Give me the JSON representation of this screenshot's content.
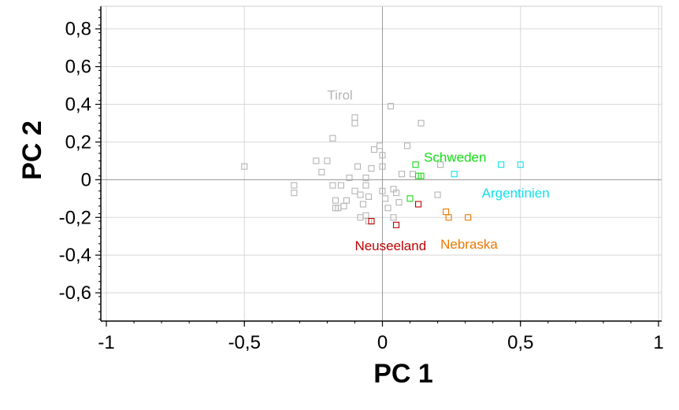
{
  "chart_data": {
    "type": "scatter",
    "title": "",
    "xlabel": "PC 1",
    "ylabel": "PC 2",
    "xlim": [
      -1,
      1
    ],
    "ylim": [
      -0.75,
      0.92
    ],
    "x_ticks": [
      -1,
      -0.5,
      0,
      0.5,
      1
    ],
    "x_tick_labels": [
      "-1",
      "-0,5",
      "0",
      "0,5",
      "1"
    ],
    "y_ticks": [
      -0.6,
      -0.4,
      -0.2,
      0,
      0.2,
      0.4,
      0.6,
      0.8
    ],
    "y_tick_labels": [
      "-0,6",
      "-0,4",
      "-0,2",
      "0",
      "0,2",
      "0,4",
      "0,6",
      "0,8"
    ],
    "grid": true,
    "marker": "open-square",
    "series": [
      {
        "name": "Tirol",
        "color": "#b4b4b4",
        "label": "Tirol",
        "label_at": [
          -0.2,
          0.45
        ],
        "points": [
          [
            -0.5,
            0.07
          ],
          [
            -0.32,
            -0.03
          ],
          [
            -0.32,
            -0.07
          ],
          [
            -0.24,
            0.1
          ],
          [
            -0.22,
            0.04
          ],
          [
            -0.2,
            0.1
          ],
          [
            -0.18,
            0.22
          ],
          [
            -0.18,
            -0.03
          ],
          [
            -0.17,
            -0.11
          ],
          [
            -0.17,
            -0.15
          ],
          [
            -0.16,
            -0.15
          ],
          [
            -0.15,
            -0.03
          ],
          [
            -0.14,
            -0.14
          ],
          [
            -0.13,
            -0.11
          ],
          [
            -0.12,
            0.01
          ],
          [
            -0.1,
            -0.06
          ],
          [
            -0.1,
            0.33
          ],
          [
            -0.1,
            0.3
          ],
          [
            -0.09,
            0.07
          ],
          [
            -0.08,
            -0.08
          ],
          [
            -0.08,
            -0.2
          ],
          [
            -0.07,
            -0.13
          ],
          [
            -0.06,
            -0.03
          ],
          [
            -0.06,
            0.01
          ],
          [
            -0.06,
            -0.19
          ],
          [
            -0.05,
            -0.09
          ],
          [
            -0.05,
            -0.22
          ],
          [
            -0.04,
            0.06
          ],
          [
            -0.03,
            0.16
          ],
          [
            -0.01,
            0.18
          ],
          [
            0.0,
            0.13
          ],
          [
            0.0,
            0.07
          ],
          [
            0.0,
            -0.06
          ],
          [
            0.01,
            -0.1
          ],
          [
            0.02,
            -0.15
          ],
          [
            0.03,
            0.39
          ],
          [
            0.04,
            -0.2
          ],
          [
            0.04,
            -0.05
          ],
          [
            0.05,
            -0.07
          ],
          [
            0.06,
            -0.12
          ],
          [
            0.07,
            0.03
          ],
          [
            0.09,
            0.18
          ],
          [
            0.11,
            0.03
          ],
          [
            0.14,
            0.3
          ],
          [
            0.2,
            -0.08
          ],
          [
            0.21,
            0.08
          ]
        ]
      },
      {
        "name": "Schweden",
        "color": "#11dd11",
        "label": "Schweden",
        "label_at": [
          0.15,
          0.12
        ],
        "points": [
          [
            0.1,
            -0.1
          ],
          [
            0.12,
            0.08
          ],
          [
            0.13,
            0.02
          ],
          [
            0.14,
            0.02
          ]
        ]
      },
      {
        "name": "Argentinien",
        "color": "#11e0ea",
        "label": "Argentinien",
        "label_at": [
          0.36,
          -0.07
        ],
        "points": [
          [
            0.26,
            0.03
          ],
          [
            0.43,
            0.08
          ],
          [
            0.5,
            0.08
          ]
        ]
      },
      {
        "name": "Neuseeland",
        "color": "#c00000",
        "label": "Neuseeland",
        "label_at": [
          -0.1,
          -0.35
        ],
        "points": [
          [
            -0.04,
            -0.22
          ],
          [
            0.05,
            -0.24
          ],
          [
            0.13,
            -0.13
          ]
        ]
      },
      {
        "name": "Nebraska",
        "color": "#ee7700",
        "label": "Nebraska",
        "label_at": [
          0.21,
          -0.34
        ],
        "points": [
          [
            0.23,
            -0.17
          ],
          [
            0.24,
            -0.2
          ],
          [
            0.31,
            -0.2
          ]
        ]
      }
    ]
  }
}
